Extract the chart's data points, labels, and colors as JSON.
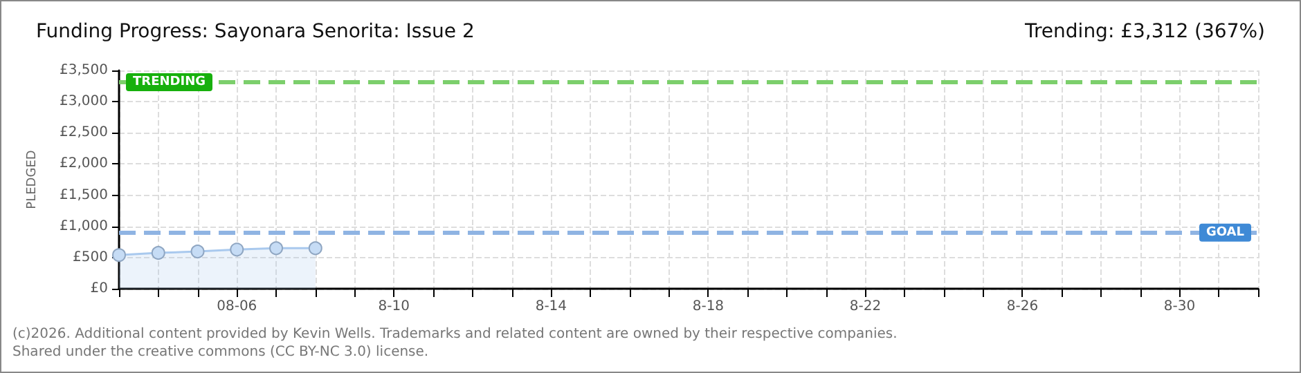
{
  "chart_data": {
    "type": "area",
    "title": "Funding Progress: Sayonara Senorita: Issue 2",
    "subtitle": "Trending: £3,312 (367%)",
    "ylabel": "PLEDGED",
    "annotations": [
      "(c)2026. Additional content provided by Kevin Wells. Trademarks and related content are owned by their respective companies.",
      "Shared under the creative commons (CC BY-NC 3.0) license."
    ],
    "x": [
      "--08-03",
      "--08-04",
      "--08-05",
      "--08-06",
      "--08-07",
      "--08-08"
    ],
    "series": [
      {
        "color": "#a9c9ee",
        "values": [
          540,
          575,
          597,
          628,
          650,
          650
        ]
      }
    ],
    "xlim": [
      "--08-03",
      "--09-01"
    ],
    "xticks": [
      {
        "value": "--08-03",
        "label": null
      },
      {
        "value": "--08-04",
        "label": null
      },
      {
        "value": "--08-05",
        "label": null
      },
      {
        "value": "--08-06",
        "label": "08-06"
      },
      {
        "value": "--08-07",
        "label": null
      },
      {
        "value": "--08-08",
        "label": null
      },
      {
        "value": "--08-09",
        "label": null
      },
      {
        "value": "--08-10",
        "label": "8-10"
      },
      {
        "value": "--08-11",
        "label": null
      },
      {
        "value": "--08-12",
        "label": null
      },
      {
        "value": "--08-13",
        "label": null
      },
      {
        "value": "--08-14",
        "label": "8-14"
      },
      {
        "value": "--08-15",
        "label": null
      },
      {
        "value": "--08-16",
        "label": null
      },
      {
        "value": "--08-17",
        "label": null
      },
      {
        "value": "--08-18",
        "label": "8-18"
      },
      {
        "value": "--08-19",
        "label": null
      },
      {
        "value": "--08-20",
        "label": null
      },
      {
        "value": "--08-21",
        "label": null
      },
      {
        "value": "--08-22",
        "label": "8-22"
      },
      {
        "value": "--08-23",
        "label": null
      },
      {
        "value": "--08-24",
        "label": null
      },
      {
        "value": "--08-25",
        "label": null
      },
      {
        "value": "--08-26",
        "label": "8-26"
      },
      {
        "value": "--08-27",
        "label": null
      },
      {
        "value": "--08-28",
        "label": null
      },
      {
        "value": "--08-29",
        "label": null
      },
      {
        "value": "--08-30",
        "label": "8-30"
      },
      {
        "value": "--08-31",
        "label": null
      },
      {
        "value": "--09-01",
        "label": null
      }
    ],
    "ylim": [
      0,
      3500
    ],
    "yticks": [
      {
        "value": 0,
        "label": "£0"
      },
      {
        "value": 500,
        "label": "£500"
      },
      {
        "value": 1000,
        "label": "£1,000"
      },
      {
        "value": 1500,
        "label": "£1,500"
      },
      {
        "value": 2000,
        "label": "£2,000"
      },
      {
        "value": 2500,
        "label": "£2,500"
      },
      {
        "value": 3000,
        "label": "£3,000"
      },
      {
        "value": 3500,
        "label": "£3,500"
      }
    ],
    "ref_lines": [
      {
        "axis": "y",
        "value": 3312,
        "label": "TRENDING",
        "color": "#7ccf6c",
        "line_style": "dashed"
      },
      {
        "axis": "y",
        "value": 900,
        "label": "GOAL",
        "color": "#8fb4e3",
        "line_style": "dashed"
      }
    ],
    "grid": true,
    "marker": "circle"
  }
}
